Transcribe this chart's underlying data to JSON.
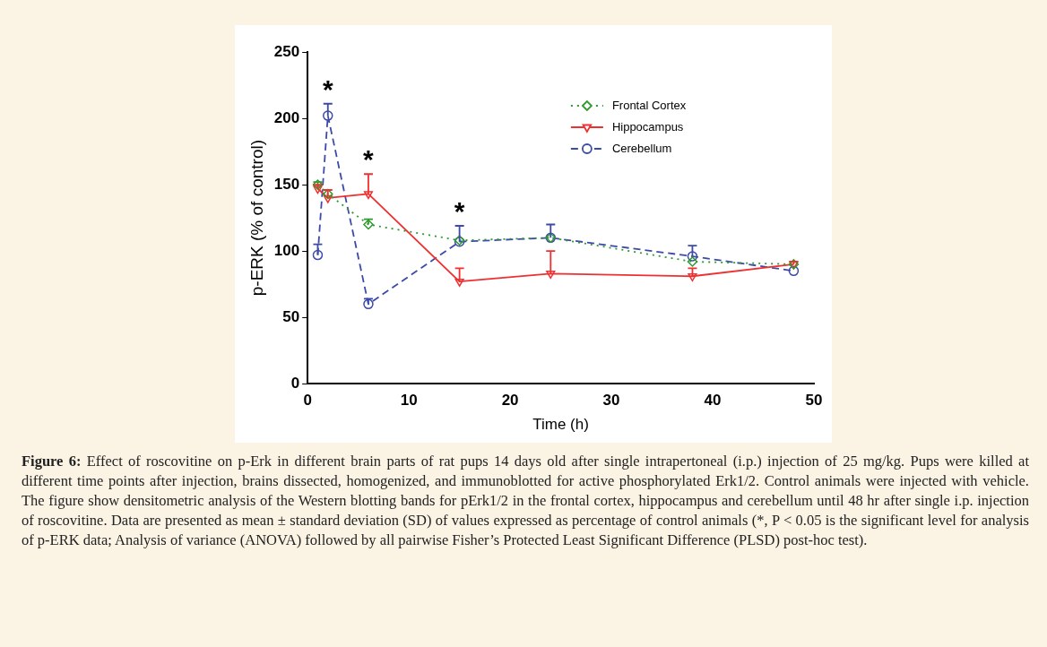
{
  "chart_data": {
    "type": "line",
    "xlabel": "Time (h)",
    "ylabel": "p-ERK (% of control)",
    "xlim": [
      0,
      50
    ],
    "xticks": [
      0,
      10,
      20,
      30,
      40,
      50
    ],
    "ylim": [
      0,
      250
    ],
    "yticks": [
      0,
      50,
      100,
      150,
      200,
      250
    ],
    "grid": false,
    "legend": "top right",
    "series": [
      {
        "name": "Frontal Cortex",
        "color": "#2e9a2e",
        "marker": "diamond",
        "line_style": "dotted",
        "x": [
          1,
          2,
          6,
          15,
          24,
          38,
          48
        ],
        "values": [
          150,
          143,
          120,
          108,
          110,
          92,
          90
        ],
        "errors": [
          [
            150,
            152
          ],
          null,
          [
            120,
            124
          ],
          null,
          null,
          null,
          null
        ]
      },
      {
        "name": "Hippocampus",
        "color": "#f03030",
        "marker": "triangle",
        "line_style": "solid",
        "x": [
          1,
          2,
          6,
          15,
          24,
          38,
          48
        ],
        "values": [
          147,
          140,
          143,
          77,
          83,
          81,
          90
        ],
        "errors": [
          [
            147,
            150
          ],
          [
            140,
            146
          ],
          [
            143,
            158
          ],
          [
            77,
            87
          ],
          [
            83,
            100
          ],
          [
            81,
            87
          ],
          [
            90,
            92
          ]
        ]
      },
      {
        "name": "Cerebellum",
        "color": "#3c4aa8",
        "marker": "circle",
        "line_style": "dashed",
        "x": [
          1,
          2,
          6,
          15,
          24,
          38,
          48
        ],
        "values": [
          97,
          202,
          60,
          107,
          110,
          96,
          85
        ],
        "errors": [
          [
            97,
            105
          ],
          [
            202,
            211
          ],
          [
            60,
            64
          ],
          [
            107,
            119
          ],
          [
            110,
            120
          ],
          [
            96,
            104
          ],
          null
        ]
      }
    ],
    "annotations": [
      "*",
      "*",
      "*",
      "Figure 6: Effect of roscovitine on p-Erk in different brain parts of rat pups 14 days old after single intrapertoneal (i.p.) injection of 25 mg/kg. Pups were killed at different time points after injection, brains dissected, homogenized, and immunoblotted for active phosphorylated Erk1/2. Control animals were injected with vehicle.  The figure show densitometric analysis of the Western blotting bands for pErk1/2 in the frontal cortex, hippocampus and cerebellum until 48 hr after single i.p. injection of roscovitine. Data are presented as mean ± standard deviation (SD) of values expressed as percentage of control animals (*, P < 0.05 is the significant level for analysis of p-ERK data; Analysis of variance (ANOVA) followed by all pairwise Fisher’s Protected Least Significant Difference (PLSD) post-hoc test)."
    ]
  }
}
